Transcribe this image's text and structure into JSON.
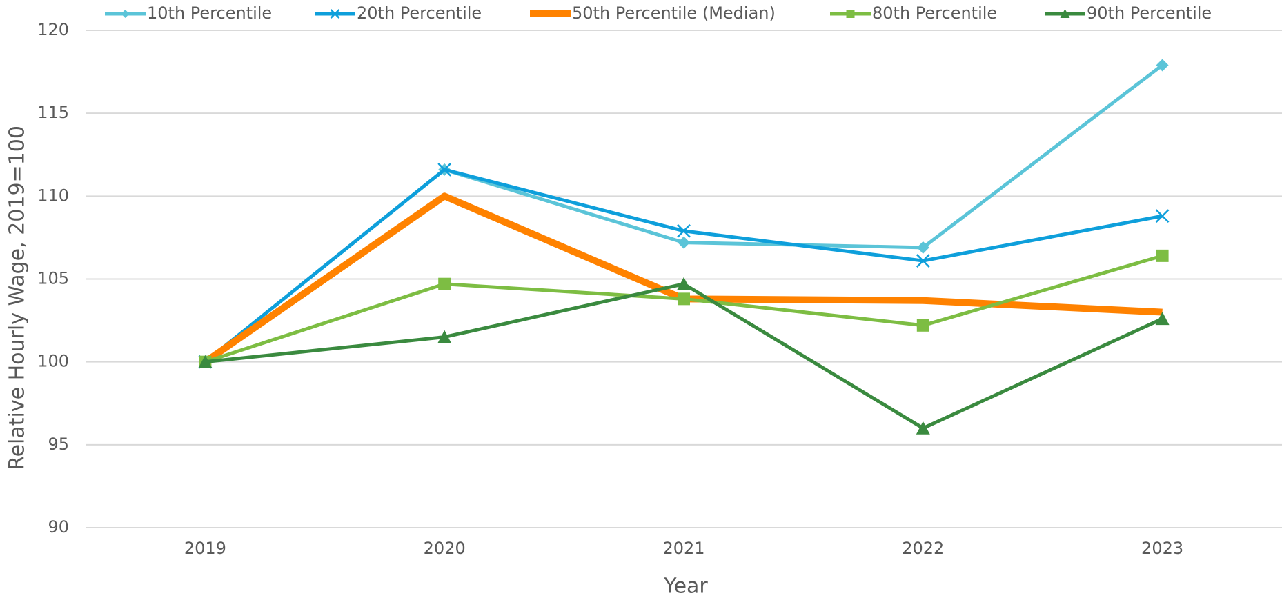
{
  "chart_data": {
    "type": "line",
    "xlabel": "Year",
    "ylabel": "Relative Hourly Wage, 2019=100",
    "categories": [
      "2019",
      "2020",
      "2021",
      "2022",
      "2023"
    ],
    "ylim": [
      90,
      120
    ],
    "yticks": [
      90,
      95,
      100,
      105,
      110,
      115,
      120
    ],
    "grid": true,
    "legend": "top",
    "series": [
      {
        "name": "10th Percentile",
        "color": "#5bc4d8",
        "marker": "diamond",
        "line_width": 5,
        "values": [
          100,
          111.6,
          107.2,
          106.9,
          117.9
        ]
      },
      {
        "name": "20th Percentile",
        "color": "#0e9fdb",
        "marker": "x",
        "line_width": 5,
        "values": [
          100,
          111.6,
          107.9,
          106.1,
          108.8
        ]
      },
      {
        "name": "50th Percentile (Median)",
        "color": "#ff8200",
        "marker": "none",
        "line_width": 10,
        "values": [
          100,
          110.0,
          103.8,
          103.7,
          103.0
        ]
      },
      {
        "name": "80th Percentile",
        "color": "#7dbd43",
        "marker": "square",
        "line_width": 5,
        "values": [
          100,
          104.7,
          103.8,
          102.2,
          106.4
        ]
      },
      {
        "name": "90th Percentile",
        "color": "#3a8a3f",
        "marker": "triangle",
        "line_width": 5,
        "values": [
          100,
          101.5,
          104.7,
          96.0,
          102.6
        ]
      }
    ]
  }
}
